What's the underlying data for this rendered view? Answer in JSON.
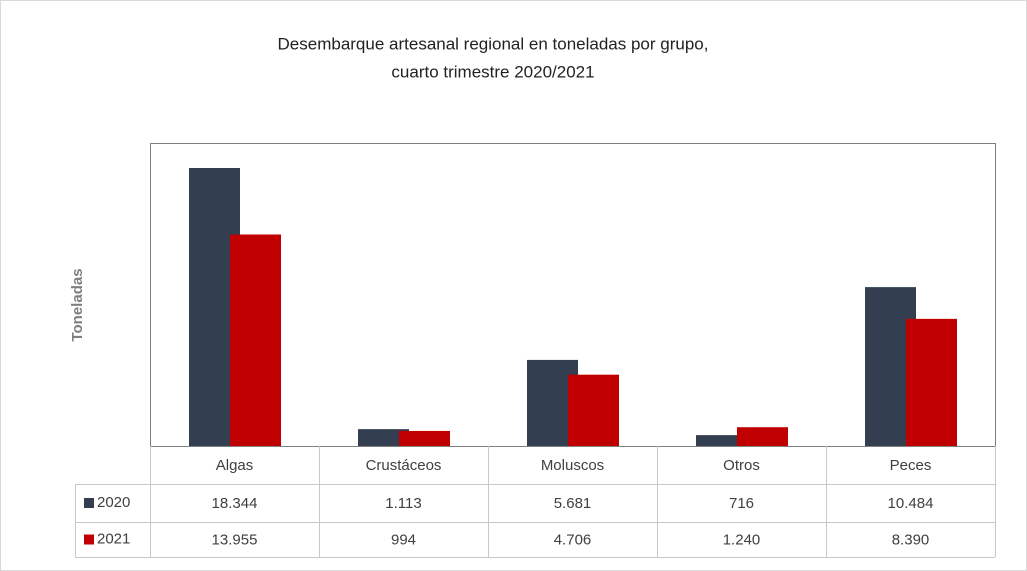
{
  "chart_data": {
    "type": "bar",
    "title": [
      "Desembarque artesanal regional en toneladas por grupo,",
      "cuarto trimestre 2020/2021"
    ],
    "y_label": "Toneladas",
    "categories": [
      "Algas",
      "Crustáceos",
      "Moluscos",
      "Otros",
      "Peces"
    ],
    "series": [
      {
        "name": "2020",
        "color": "#333f50",
        "values": [
          18344,
          1113,
          5681,
          716,
          10484
        ],
        "value_labels": [
          "18.344",
          "1.113",
          "5.681",
          "716",
          "10.484"
        ]
      },
      {
        "name": "2021",
        "color": "#c00000",
        "values": [
          13955,
          994,
          4706,
          1240,
          8390
        ],
        "value_labels": [
          "13.955",
          "994",
          "4.706",
          "1.240",
          "8.390"
        ]
      }
    ]
  }
}
